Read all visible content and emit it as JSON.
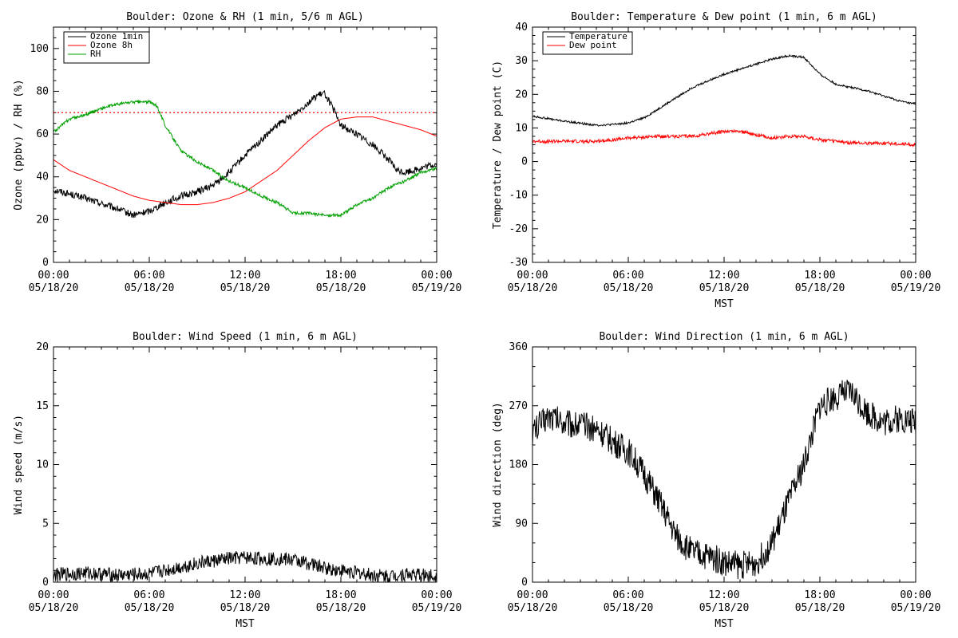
{
  "chart_data": [
    {
      "id": "ozone",
      "type": "line",
      "title": "Boulder: Ozone & RH (1 min, 5/6 m AGL)",
      "xlabel": "",
      "ylabel": "Ozone (ppbv) / RH (%)",
      "xlim": [
        "05/18/20 00:00",
        "05/19/20 00:00"
      ],
      "ylim": [
        0,
        110
      ],
      "yticks": [
        0,
        20,
        40,
        60,
        80,
        100
      ],
      "xticks": [
        {
          "time": "00:00",
          "date": "05/18/20"
        },
        {
          "time": "06:00",
          "date": "05/18/20"
        },
        {
          "time": "12:00",
          "date": "05/18/20"
        },
        {
          "time": "18:00",
          "date": "05/18/20"
        },
        {
          "time": "00:00",
          "date": "05/19/20"
        }
      ],
      "grid": false,
      "legend": "top-left",
      "reference_line": {
        "y": 70,
        "color": "#ff0000",
        "style": "dotted"
      },
      "series": [
        {
          "name": "Ozone 1min",
          "color": "#000000",
          "noise": 1.6,
          "x": [
            "00:00",
            "02:00",
            "04:00",
            "05:00",
            "06:00",
            "07:00",
            "08:00",
            "09:00",
            "10:00",
            "11:00",
            "12:00",
            "13:00",
            "14:00",
            "15:00",
            "16:00",
            "16:30",
            "17:00",
            "17:30",
            "18:00",
            "19:00",
            "20:00",
            "21:00",
            "21:30",
            "22:00",
            "23:00",
            "24:00"
          ],
          "y": [
            34,
            30,
            25,
            22,
            24,
            28,
            31,
            33,
            36,
            42,
            50,
            57,
            64,
            69,
            75,
            78,
            79,
            72,
            64,
            60,
            55,
            48,
            43,
            42,
            44,
            46
          ]
        },
        {
          "name": "Ozone 8h",
          "color": "#ff0000",
          "noise": 0,
          "x": [
            "00:00",
            "01:00",
            "02:00",
            "03:00",
            "04:00",
            "05:00",
            "06:00",
            "07:00",
            "08:00",
            "09:00",
            "10:00",
            "11:00",
            "12:00",
            "13:00",
            "14:00",
            "15:00",
            "16:00",
            "17:00",
            "18:00",
            "19:00",
            "20:00",
            "21:00",
            "22:00",
            "23:00",
            "24:00"
          ],
          "y": [
            48,
            43,
            40,
            37,
            34,
            31,
            29,
            28,
            27,
            27,
            28,
            30,
            33,
            38,
            43,
            50,
            57,
            63,
            67,
            68,
            68,
            66,
            64,
            62,
            59
          ]
        },
        {
          "name": "RH",
          "color": "#00a000",
          "noise": 0.7,
          "x": [
            "00:00",
            "00:30",
            "01:00",
            "02:00",
            "03:00",
            "04:00",
            "05:00",
            "06:00",
            "06:30",
            "07:00",
            "08:00",
            "09:00",
            "10:00",
            "11:00",
            "12:00",
            "13:00",
            "14:00",
            "15:00",
            "16:00",
            "17:00",
            "18:00",
            "19:00",
            "20:00",
            "21:00",
            "22:00",
            "23:00",
            "24:00"
          ],
          "y": [
            61,
            64,
            67,
            69,
            72,
            74,
            75,
            75,
            73,
            64,
            52,
            47,
            43,
            38,
            35,
            31,
            28,
            23,
            23,
            22,
            22,
            27,
            30,
            35,
            38,
            42,
            44
          ]
        }
      ]
    },
    {
      "id": "temp",
      "type": "line",
      "title": "Boulder: Temperature & Dew point (1 min, 6 m AGL)",
      "xlabel": "MST",
      "ylabel": "Temperature / Dew point (C)",
      "xlim": [
        "05/18/20 00:00",
        "05/19/20 00:00"
      ],
      "ylim": [
        -30,
        40
      ],
      "yticks": [
        -30,
        -20,
        -10,
        0,
        10,
        20,
        30,
        40
      ],
      "xticks": [
        {
          "time": "00:00",
          "date": "05/18/20"
        },
        {
          "time": "06:00",
          "date": "05/18/20"
        },
        {
          "time": "12:00",
          "date": "05/18/20"
        },
        {
          "time": "18:00",
          "date": "05/18/20"
        },
        {
          "time": "00:00",
          "date": "05/19/20"
        }
      ],
      "grid": false,
      "legend": "top-left",
      "series": [
        {
          "name": "Temperature",
          "color": "#000000",
          "noise": 0.3,
          "x": [
            "00:00",
            "02:00",
            "04:00",
            "05:00",
            "06:00",
            "07:00",
            "08:00",
            "09:00",
            "10:00",
            "11:00",
            "12:00",
            "13:00",
            "14:00",
            "15:00",
            "16:00",
            "17:00",
            "18:00",
            "19:00",
            "20:00",
            "21:00",
            "22:00",
            "23:00",
            "24:00"
          ],
          "y": [
            13.5,
            12,
            10.8,
            11,
            11.5,
            13,
            16,
            19,
            22,
            24,
            26,
            27.5,
            29,
            30.5,
            31.5,
            31,
            26,
            23,
            22,
            21,
            19.5,
            18,
            17
          ]
        },
        {
          "name": "Dew point",
          "color": "#ff0000",
          "noise": 0.5,
          "x": [
            "00:00",
            "02:00",
            "04:00",
            "06:00",
            "08:00",
            "10:00",
            "12:00",
            "13:00",
            "14:00",
            "15:00",
            "16:00",
            "17:00",
            "18:00",
            "20:00",
            "22:00",
            "24:00"
          ],
          "y": [
            6,
            6,
            6,
            7,
            7.5,
            7.5,
            9,
            9,
            8,
            7,
            7.5,
            7.5,
            6.5,
            5.5,
            5.5,
            5
          ]
        }
      ]
    },
    {
      "id": "wspd",
      "type": "line",
      "title": "Boulder: Wind Speed (1 min, 6 m AGL)",
      "xlabel": "MST",
      "ylabel": "Wind speed (m/s)",
      "xlim": [
        "05/18/20 00:00",
        "05/19/20 00:00"
      ],
      "ylim": [
        0,
        20
      ],
      "yticks": [
        0,
        5,
        10,
        15,
        20
      ],
      "xticks": [
        {
          "time": "00:00",
          "date": "05/18/20"
        },
        {
          "time": "06:00",
          "date": "05/18/20"
        },
        {
          "time": "12:00",
          "date": "05/18/20"
        },
        {
          "time": "18:00",
          "date": "05/18/20"
        },
        {
          "time": "00:00",
          "date": "05/19/20"
        }
      ],
      "grid": false,
      "legend": "none",
      "series": [
        {
          "name": "",
          "color": "#000000",
          "noise": 0.6,
          "x": [
            "00:00",
            "02:00",
            "04:00",
            "06:00",
            "07:00",
            "08:00",
            "09:00",
            "10:00",
            "11:00",
            "12:00",
            "13:00",
            "14:00",
            "15:00",
            "16:00",
            "17:00",
            "18:00",
            "19:00",
            "20:00",
            "21:00",
            "22:00",
            "23:00",
            "24:00"
          ],
          "y": [
            0.6,
            0.8,
            0.6,
            0.7,
            1,
            1.3,
            1.6,
            1.8,
            2,
            2.1,
            2,
            2,
            1.9,
            1.6,
            1.2,
            1,
            0.8,
            0.6,
            0.5,
            0.7,
            0.6,
            0.5
          ]
        }
      ]
    },
    {
      "id": "wdir",
      "type": "line",
      "title": "Boulder: Wind Direction (1 min, 6 m AGL)",
      "xlabel": "MST",
      "ylabel": "Wind direction (deg)",
      "xlim": [
        "05/18/20 00:00",
        "05/19/20 00:00"
      ],
      "ylim": [
        0,
        360
      ],
      "yticks": [
        0,
        90,
        180,
        270,
        360
      ],
      "xticks": [
        {
          "time": "00:00",
          "date": "05/18/20"
        },
        {
          "time": "06:00",
          "date": "05/18/20"
        },
        {
          "time": "12:00",
          "date": "05/18/20"
        },
        {
          "time": "18:00",
          "date": "05/18/20"
        },
        {
          "time": "00:00",
          "date": "05/19/20"
        }
      ],
      "grid": false,
      "legend": "none",
      "series": [
        {
          "name": "",
          "color": "#000000",
          "noise": 22,
          "x": [
            "00:00",
            "01:00",
            "02:00",
            "03:00",
            "04:00",
            "05:00",
            "06:00",
            "07:00",
            "08:00",
            "09:00",
            "10:00",
            "11:00",
            "12:00",
            "13:00",
            "14:00",
            "15:00",
            "16:00",
            "17:00",
            "18:00",
            "19:00",
            "20:00",
            "21:00",
            "22:00",
            "23:00",
            "24:00"
          ],
          "y": [
            230,
            255,
            245,
            240,
            235,
            215,
            200,
            165,
            120,
            70,
            45,
            40,
            30,
            25,
            30,
            60,
            120,
            180,
            270,
            285,
            290,
            260,
            245,
            250,
            245
          ]
        }
      ]
    }
  ]
}
